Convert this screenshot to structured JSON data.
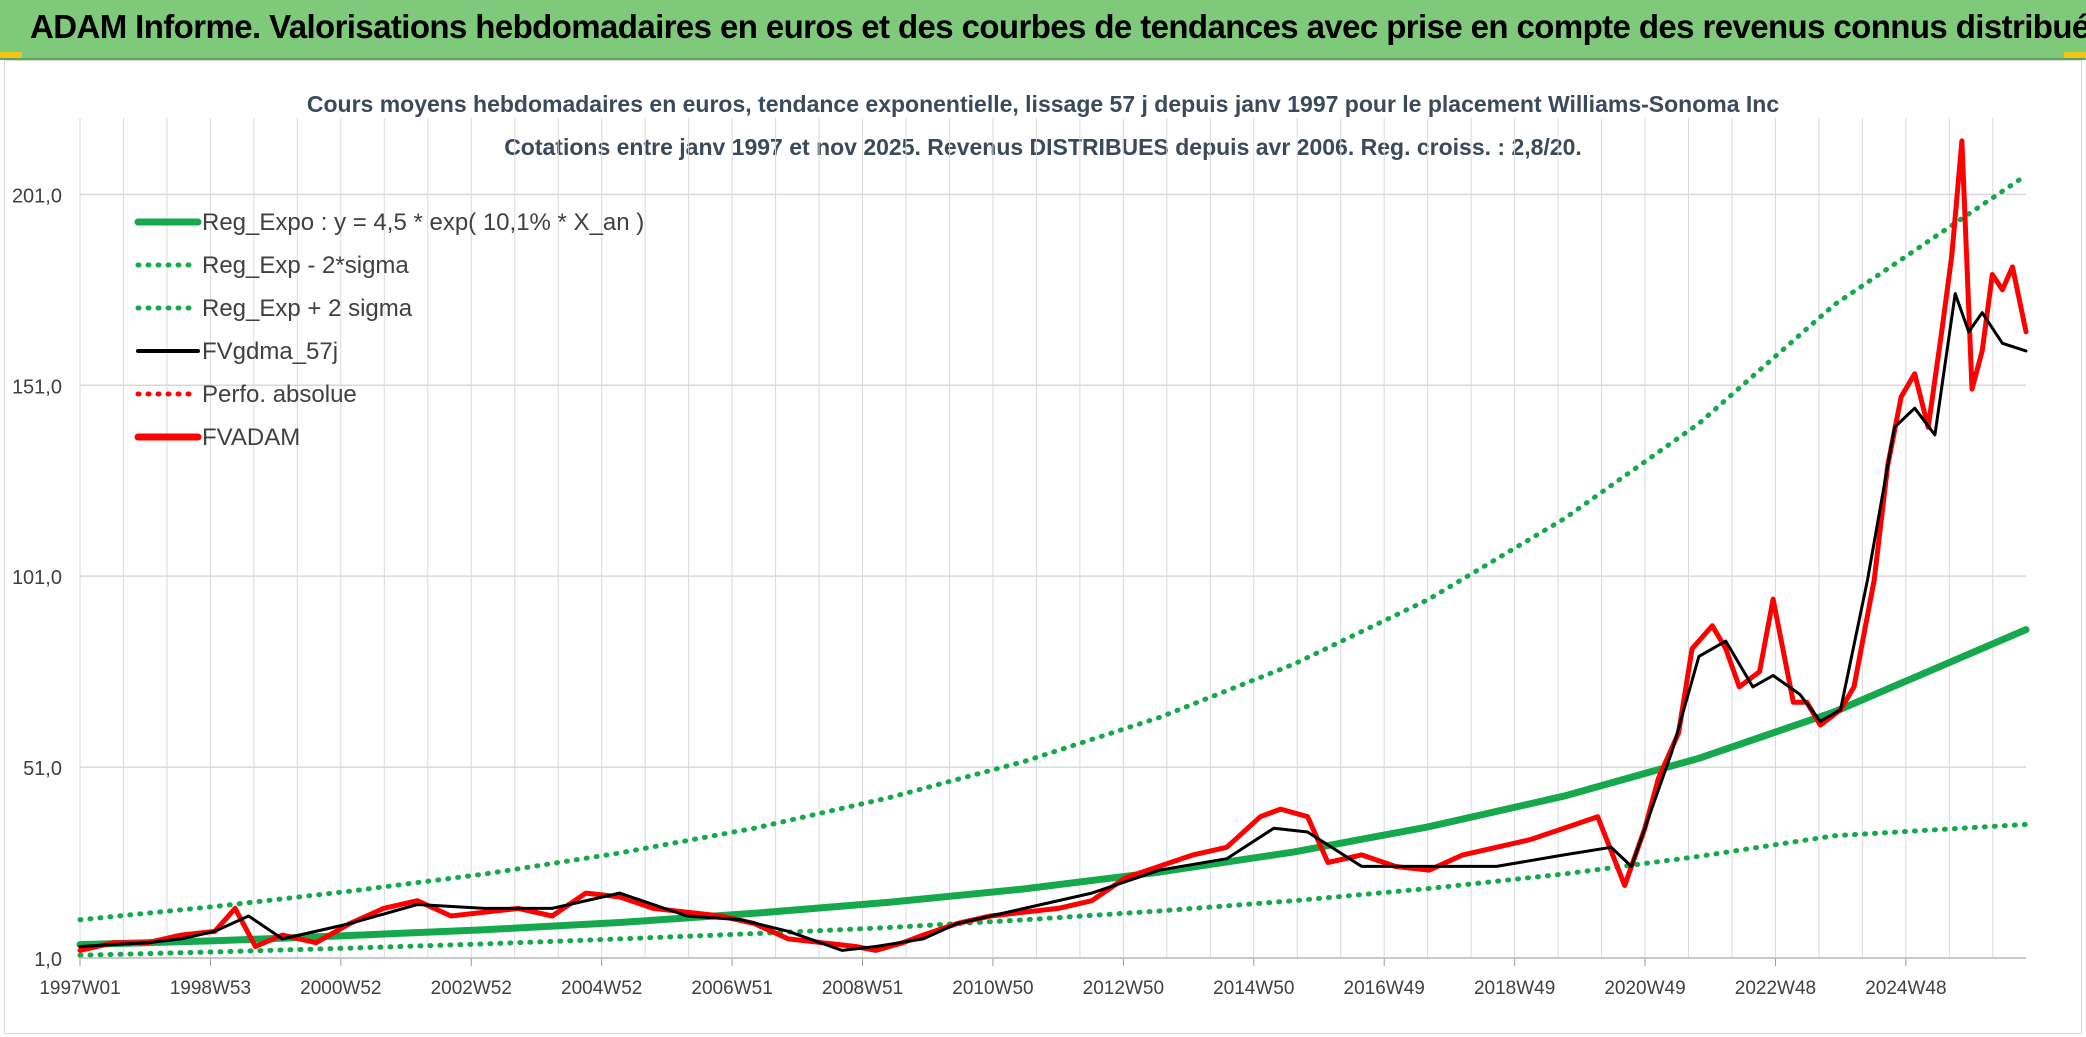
{
  "header": {
    "title": "ADAM Informe. Valorisations hebdomadaires en euros et des courbes de tendances avec prise en compte des revenus connus distribués"
  },
  "colors": {
    "header_bg": "#7ec97a",
    "reg": "#16a84c",
    "fv": "#000000",
    "adam": "#ff0000",
    "grid": "#d9d9d9"
  },
  "chart_data": {
    "type": "line",
    "title": "Cours moyens hebdomadaires en euros, tendance exponentielle, lissage 57 j depuis janv 1997 pour le placement Williams-Sonoma Inc",
    "subtitle": "Cotations entre janv 1997 et nov 2025. Revenus DISTRIBUES depuis avr 2006. Reg. croiss. : 2,8/20.",
    "xlabel": "",
    "ylabel": "",
    "x_ticks": [
      "1997W01",
      "1998W53",
      "2000W52",
      "2002W52",
      "2004W52",
      "2006W51",
      "2008W51",
      "2010W50",
      "2012W50",
      "2014W50",
      "2016W49",
      "2018W49",
      "2020W49",
      "2022W48",
      "2024W48"
    ],
    "y_ticks": [
      "1,0",
      "51,0",
      "101,0",
      "151,0",
      "201,0"
    ],
    "ylim": [
      1,
      221
    ],
    "xlim": [
      1997.0,
      2025.85
    ],
    "grid": true,
    "legend_position": "top-left",
    "legend": [
      {
        "label": "Reg_Expo : y = 4,5 * exp( 10,1% *  X_an )",
        "style": "solid-thick",
        "color": "#16a84c"
      },
      {
        "label": "Reg_Exp - 2*sigma",
        "style": "dotted",
        "color": "#16a84c"
      },
      {
        "label": "Reg_Exp + 2 sigma",
        "style": "dotted",
        "color": "#16a84c"
      },
      {
        "label": "FVgdma_57j",
        "style": "solid",
        "color": "#000000"
      },
      {
        "label": "Perfo. absolue",
        "style": "dotted",
        "color": "#ff0000"
      },
      {
        "label": "FVADAM",
        "style": "solid-thick",
        "color": "#ff0000"
      }
    ],
    "series": [
      {
        "name": "Reg_Expo : y = 4,5 * exp( 10,1% *  X_an )",
        "x": [
          1997,
          1999,
          2001,
          2003,
          2005,
          2007,
          2009,
          2011,
          2013,
          2015,
          2017,
          2019,
          2021,
          2023,
          2025.85
        ],
        "values": [
          4.5,
          5.5,
          6.9,
          8.4,
          10.3,
          12.7,
          15.6,
          19.1,
          23.5,
          28.8,
          35.4,
          43.4,
          53.3,
          65.4,
          87.0
        ]
      },
      {
        "name": "Reg_Exp - 2*sigma",
        "x": [
          1997,
          1999,
          2001,
          2003,
          2005,
          2007,
          2009,
          2011,
          2013,
          2015,
          2017,
          2019,
          2021,
          2023,
          2025.85
        ],
        "values": [
          1.7,
          2.6,
          3.6,
          4.7,
          6.0,
          7.4,
          9.0,
          11.0,
          13.3,
          16.0,
          19.2,
          23.0,
          27.6,
          33.0,
          36.0
        ]
      },
      {
        "name": "Reg_Exp + 2 sigma",
        "x": [
          1997,
          1999,
          2001,
          2003,
          2005,
          2007,
          2009,
          2011,
          2013,
          2015,
          2017,
          2019,
          2021,
          2023,
          2025.85
        ],
        "values": [
          11.0,
          14.5,
          18.5,
          23.0,
          28.5,
          35.0,
          43.0,
          52.5,
          64.0,
          78.0,
          95.0,
          116.0,
          141.0,
          172.0,
          206.0
        ]
      },
      {
        "name": "FVgdma_57j",
        "x": [
          1997,
          1998,
          1998.5,
          1999,
          1999.5,
          2000,
          2001,
          2002,
          2003,
          2004,
          2005,
          2005.5,
          2006,
          2006.8,
          2007.5,
          2008.3,
          2008.8,
          2009.5,
          2010,
          2011,
          2012,
          2013,
          2014,
          2014.7,
          2015.2,
          2016,
          2017,
          2018,
          2019,
          2019.7,
          2020,
          2020.3,
          2020.6,
          2021,
          2021.4,
          2021.8,
          2022.1,
          2022.5,
          2022.8,
          2023.1,
          2023.5,
          2023.9,
          2024.2,
          2024.5,
          2024.8,
          2025.0,
          2025.2,
          2025.5,
          2025.85
        ],
        "values": [
          4,
          5,
          6,
          8,
          12,
          6,
          10,
          15,
          14,
          14,
          18,
          15,
          12,
          11,
          8,
          3,
          4,
          6,
          10,
          14,
          18,
          24,
          27,
          35,
          34,
          25,
          25,
          25,
          28,
          30,
          25,
          40,
          55,
          80,
          84,
          72,
          75,
          70,
          63,
          66,
          100,
          140,
          145,
          138,
          175,
          165,
          170,
          162,
          160
        ]
      },
      {
        "name": "FVADAM",
        "x": [
          1997,
          1997.5,
          1998,
          1998.5,
          1999,
          1999.3,
          1999.6,
          2000,
          2000.5,
          2001,
          2001.5,
          2002,
          2002.5,
          2003,
          2003.5,
          2004,
          2004.5,
          2005,
          2005.5,
          2006,
          2006.5,
          2007,
          2007.5,
          2008,
          2008.5,
          2008.8,
          2009.2,
          2009.5,
          2010,
          2010.5,
          2011,
          2011.5,
          2012,
          2012.5,
          2013,
          2013.5,
          2014,
          2014.5,
          2014.8,
          2015.2,
          2015.5,
          2016,
          2016.5,
          2017,
          2017.5,
          2018,
          2018.5,
          2019,
          2019.5,
          2019.9,
          2020.2,
          2020.4,
          2020.7,
          2020.9,
          2021.2,
          2021.4,
          2021.6,
          2021.9,
          2022.1,
          2022.4,
          2022.6,
          2022.8,
          2023.1,
          2023.3,
          2023.6,
          2023.8,
          2024.0,
          2024.2,
          2024.4,
          2024.6,
          2024.75,
          2024.9,
          2025.05,
          2025.2,
          2025.35,
          2025.5,
          2025.65,
          2025.85
        ],
        "values": [
          3,
          5,
          5,
          7,
          8,
          14,
          4,
          7,
          5,
          10,
          14,
          16,
          12,
          13,
          14,
          12,
          18,
          17,
          14,
          13,
          12,
          10,
          6,
          5,
          4,
          3,
          5,
          7,
          10,
          12,
          13,
          14,
          16,
          22,
          25,
          28,
          30,
          38,
          40,
          38,
          26,
          28,
          25,
          24,
          28,
          30,
          32,
          35,
          38,
          20,
          35,
          48,
          60,
          82,
          88,
          82,
          72,
          76,
          95,
          68,
          68,
          62,
          66,
          72,
          100,
          130,
          148,
          154,
          140,
          165,
          185,
          215,
          150,
          160,
          180,
          176,
          182,
          165
        ]
      }
    ]
  }
}
